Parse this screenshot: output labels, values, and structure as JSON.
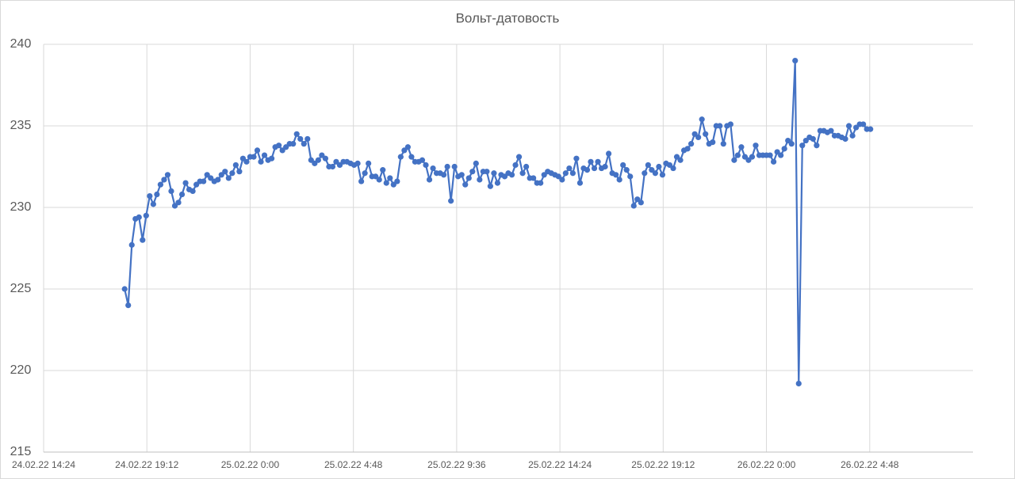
{
  "chart_data": {
    "type": "line",
    "title": "Вольт-датовость",
    "x": [
      "24.02.22 18:10",
      "24.02.22 18:20",
      "24.02.22 18:30",
      "24.02.22 18:40",
      "24.02.22 18:50",
      "24.02.22 19:00",
      "24.02.22 19:10",
      "24.02.22 19:20",
      "24.02.22 19:30",
      "24.02.22 19:40",
      "24.02.22 19:50",
      "24.02.22 20:00",
      "24.02.22 20:10",
      "24.02.22 20:20",
      "24.02.22 20:30",
      "24.02.22 20:40",
      "24.02.22 20:50",
      "24.02.22 21:00",
      "24.02.22 21:10",
      "24.02.22 21:20",
      "24.02.22 21:30",
      "24.02.22 21:40",
      "24.02.22 21:50",
      "24.02.22 22:00",
      "24.02.22 22:10",
      "24.02.22 22:20",
      "24.02.22 22:30",
      "24.02.22 22:40",
      "24.02.22 22:50",
      "24.02.22 23:00",
      "24.02.22 23:10",
      "24.02.22 23:20",
      "24.02.22 23:30",
      "24.02.22 23:40",
      "24.02.22 23:50",
      "25.02.22 0:00",
      "25.02.22 0:10",
      "25.02.22 0:20",
      "25.02.22 0:30",
      "25.02.22 0:40",
      "25.02.22 0:50",
      "25.02.22 1:00",
      "25.02.22 1:10",
      "25.02.22 1:20",
      "25.02.22 1:30",
      "25.02.22 1:40",
      "25.02.22 1:50",
      "25.02.22 2:00",
      "25.02.22 2:10",
      "25.02.22 2:20",
      "25.02.22 2:30",
      "25.02.22 2:40",
      "25.02.22 2:50",
      "25.02.22 3:00",
      "25.02.22 3:10",
      "25.02.22 3:20",
      "25.02.22 3:30",
      "25.02.22 3:40",
      "25.02.22 3:50",
      "25.02.22 4:00",
      "25.02.22 4:10",
      "25.02.22 4:20",
      "25.02.22 4:30",
      "25.02.22 4:40",
      "25.02.22 4:50",
      "25.02.22 5:00",
      "25.02.22 5:10",
      "25.02.22 5:20",
      "25.02.22 5:30",
      "25.02.22 5:40",
      "25.02.22 5:50",
      "25.02.22 6:00",
      "25.02.22 6:10",
      "25.02.22 6:20",
      "25.02.22 6:30",
      "25.02.22 6:40",
      "25.02.22 6:50",
      "25.02.22 7:00",
      "25.02.22 7:10",
      "25.02.22 7:20",
      "25.02.22 7:30",
      "25.02.22 7:40",
      "25.02.22 7:50",
      "25.02.22 8:00",
      "25.02.22 8:10",
      "25.02.22 8:20",
      "25.02.22 8:30",
      "25.02.22 8:40",
      "25.02.22 8:50",
      "25.02.22 9:00",
      "25.02.22 9:10",
      "25.02.22 9:20",
      "25.02.22 9:30",
      "25.02.22 9:40",
      "25.02.22 9:50",
      "25.02.22 10:00",
      "25.02.22 10:10",
      "25.02.22 10:20",
      "25.02.22 10:30",
      "25.02.22 10:40",
      "25.02.22 10:50",
      "25.02.22 11:00",
      "25.02.22 11:10",
      "25.02.22 11:20",
      "25.02.22 11:30",
      "25.02.22 11:40",
      "25.02.22 11:50",
      "25.02.22 12:00",
      "25.02.22 12:10",
      "25.02.22 12:20",
      "25.02.22 12:30",
      "25.02.22 12:40",
      "25.02.22 12:50",
      "25.02.22 13:00",
      "25.02.22 13:10",
      "25.02.22 13:20",
      "25.02.22 13:30",
      "25.02.22 13:40",
      "25.02.22 13:50",
      "25.02.22 14:00",
      "25.02.22 14:10",
      "25.02.22 14:20",
      "25.02.22 14:30",
      "25.02.22 14:40",
      "25.02.22 14:50",
      "25.02.22 15:00",
      "25.02.22 15:10",
      "25.02.22 15:20",
      "25.02.22 15:30",
      "25.02.22 15:40",
      "25.02.22 15:50",
      "25.02.22 16:00",
      "25.02.22 16:10",
      "25.02.22 16:20",
      "25.02.22 16:30",
      "25.02.22 16:40",
      "25.02.22 16:50",
      "25.02.22 17:00",
      "25.02.22 17:10",
      "25.02.22 17:20",
      "25.02.22 17:30",
      "25.02.22 17:40",
      "25.02.22 17:50",
      "25.02.22 18:00",
      "25.02.22 18:10",
      "25.02.22 18:20",
      "25.02.22 18:30",
      "25.02.22 18:40",
      "25.02.22 18:50",
      "25.02.22 19:00",
      "25.02.22 19:10",
      "25.02.22 19:20",
      "25.02.22 19:30",
      "25.02.22 19:40",
      "25.02.22 19:50",
      "25.02.22 20:00",
      "25.02.22 20:10",
      "25.02.22 20:20",
      "25.02.22 20:30",
      "25.02.22 20:40",
      "25.02.22 20:50",
      "25.02.22 21:00",
      "25.02.22 21:10",
      "25.02.22 21:20",
      "25.02.22 21:30",
      "25.02.22 21:40",
      "25.02.22 21:50",
      "25.02.22 22:00",
      "25.02.22 22:10",
      "25.02.22 22:20",
      "25.02.22 22:30",
      "25.02.22 22:40",
      "25.02.22 22:50",
      "25.02.22 23:00",
      "25.02.22 23:10",
      "25.02.22 23:20",
      "25.02.22 23:30",
      "25.02.22 23:40",
      "25.02.22 23:50",
      "26.02.22 0:00",
      "26.02.22 0:10",
      "26.02.22 0:20",
      "26.02.22 0:30",
      "26.02.22 0:40",
      "26.02.22 0:50",
      "26.02.22 1:00",
      "26.02.22 1:10",
      "26.02.22 1:20",
      "26.02.22 1:30",
      "26.02.22 1:40",
      "26.02.22 1:50",
      "26.02.22 2:00",
      "26.02.22 2:10",
      "26.02.22 2:20",
      "26.02.22 2:30",
      "26.02.22 2:40",
      "26.02.22 2:50",
      "26.02.22 3:00",
      "26.02.22 3:10",
      "26.02.22 3:20",
      "26.02.22 3:30",
      "26.02.22 3:40",
      "26.02.22 3:50",
      "26.02.22 4:00",
      "26.02.22 4:10",
      "26.02.22 4:20",
      "26.02.22 4:30",
      "26.02.22 4:40",
      "26.02.22 4:50"
    ],
    "values": [
      225.0,
      224.0,
      227.7,
      229.3,
      229.4,
      228.0,
      229.5,
      230.7,
      230.2,
      230.8,
      231.4,
      231.7,
      232.0,
      231.0,
      230.1,
      230.3,
      230.8,
      231.5,
      231.1,
      231.0,
      231.4,
      231.6,
      231.6,
      232.0,
      231.8,
      231.6,
      231.7,
      232.0,
      232.2,
      231.8,
      232.1,
      232.6,
      232.2,
      233.0,
      232.8,
      233.1,
      233.1,
      233.5,
      232.8,
      233.2,
      232.9,
      233.0,
      233.7,
      233.8,
      233.5,
      233.7,
      233.9,
      233.9,
      234.5,
      234.2,
      233.9,
      234.2,
      232.9,
      232.7,
      232.9,
      233.2,
      233.0,
      232.5,
      232.5,
      232.8,
      232.6,
      232.8,
      232.8,
      232.7,
      232.6,
      232.7,
      231.6,
      232.1,
      232.7,
      231.9,
      231.9,
      231.7,
      232.3,
      231.5,
      231.8,
      231.4,
      231.6,
      233.1,
      233.5,
      233.7,
      233.1,
      232.8,
      232.8,
      232.9,
      232.6,
      231.7,
      232.4,
      232.1,
      232.1,
      232.0,
      232.5,
      230.4,
      232.5,
      231.9,
      232.0,
      231.4,
      231.8,
      232.2,
      232.7,
      231.7,
      232.2,
      232.2,
      231.3,
      232.1,
      231.5,
      232.0,
      231.9,
      232.1,
      232.0,
      232.6,
      233.1,
      232.1,
      232.5,
      231.8,
      231.8,
      231.5,
      231.5,
      232.0,
      232.2,
      232.1,
      232.0,
      231.9,
      231.7,
      232.1,
      232.4,
      232.1,
      233.0,
      231.5,
      232.4,
      232.3,
      232.8,
      232.4,
      232.8,
      232.4,
      232.5,
      233.3,
      232.1,
      232.0,
      231.7,
      232.6,
      232.3,
      231.9,
      230.1,
      230.5,
      230.3,
      232.1,
      232.6,
      232.3,
      232.1,
      232.5,
      232.0,
      232.7,
      232.6,
      232.4,
      233.1,
      232.9,
      233.5,
      233.6,
      233.9,
      234.5,
      234.3,
      235.4,
      234.5,
      233.9,
      234.0,
      235.0,
      235.0,
      233.9,
      235.0,
      235.1,
      232.9,
      233.2,
      233.7,
      233.1,
      232.9,
      233.1,
      233.8,
      233.2,
      233.2,
      233.2,
      233.2,
      232.8,
      233.4,
      233.2,
      233.6,
      234.1,
      233.9,
      239.0,
      219.2,
      233.8,
      234.1,
      234.3,
      234.2,
      233.8,
      234.7,
      234.7,
      234.6,
      234.7,
      234.4,
      234.4,
      234.3,
      234.2,
      235.0,
      234.4,
      234.9,
      235.1,
      235.1,
      234.8,
      234.8
    ],
    "color": "#4472c4",
    "xlim": [
      "24.02.22 14:24",
      "26.02.22 9:36"
    ],
    "xticks": [
      "24.02.22 14:24",
      "24.02.22 19:12",
      "25.02.22 0:00",
      "25.02.22 4:48",
      "25.02.22 9:36",
      "25.02.22 14:24",
      "25.02.22 19:12",
      "26.02.22 0:00",
      "26.02.22 4:48"
    ],
    "ylim": [
      215,
      240
    ],
    "yticks": [
      215,
      220,
      225,
      230,
      235,
      240
    ],
    "grid": true
  }
}
